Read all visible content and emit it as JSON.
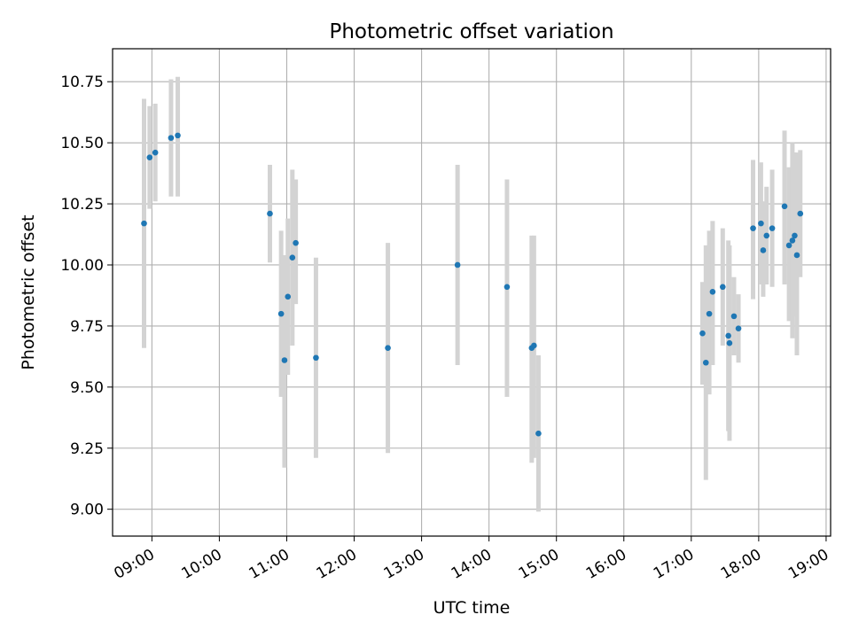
{
  "chart_data": {
    "type": "scatter",
    "title": "Photometric offset variation",
    "xlabel": "UTC time",
    "ylabel": "Photometric offset",
    "x_axis_type": "time",
    "xlim": [
      "08:25",
      "19:04"
    ],
    "ylim": [
      8.89,
      10.885
    ],
    "x_ticks": [
      "09:00",
      "10:00",
      "11:00",
      "12:00",
      "13:00",
      "14:00",
      "15:00",
      "16:00",
      "17:00",
      "18:00",
      "19:00"
    ],
    "y_ticks": [
      "9.00",
      "9.25",
      "9.50",
      "9.75",
      "10.00",
      "10.25",
      "10.50",
      "10.75"
    ],
    "grid": true,
    "legend": false,
    "point_color": "#1f77b4",
    "errorbar_color": "#d3d3d3",
    "points": [
      {
        "t": "08:53",
        "y": 10.17,
        "ylo": 9.66,
        "yhi": 10.68
      },
      {
        "t": "08:58",
        "y": 10.44,
        "ylo": 10.23,
        "yhi": 10.65
      },
      {
        "t": "09:03",
        "y": 10.46,
        "ylo": 10.26,
        "yhi": 10.66
      },
      {
        "t": "09:17",
        "y": 10.52,
        "ylo": 10.28,
        "yhi": 10.76
      },
      {
        "t": "09:23",
        "y": 10.53,
        "ylo": 10.28,
        "yhi": 10.77
      },
      {
        "t": "10:45",
        "y": 10.21,
        "ylo": 10.01,
        "yhi": 10.41
      },
      {
        "t": "10:55",
        "y": 9.8,
        "ylo": 9.46,
        "yhi": 10.14
      },
      {
        "t": "10:58",
        "y": 9.61,
        "ylo": 9.17,
        "yhi": 10.04
      },
      {
        "t": "11:01",
        "y": 9.87,
        "ylo": 9.55,
        "yhi": 10.19
      },
      {
        "t": "11:05",
        "y": 10.03,
        "ylo": 9.67,
        "yhi": 10.39
      },
      {
        "t": "11:08",
        "y": 10.09,
        "ylo": 9.84,
        "yhi": 10.35
      },
      {
        "t": "11:26",
        "y": 9.62,
        "ylo": 9.21,
        "yhi": 10.03
      },
      {
        "t": "12:30",
        "y": 9.66,
        "ylo": 9.23,
        "yhi": 10.09
      },
      {
        "t": "13:32",
        "y": 10.0,
        "ylo": 9.59,
        "yhi": 10.41
      },
      {
        "t": "14:16",
        "y": 9.91,
        "ylo": 9.46,
        "yhi": 10.35
      },
      {
        "t": "14:38",
        "y": 9.66,
        "ylo": 9.19,
        "yhi": 10.12
      },
      {
        "t": "14:40",
        "y": 9.67,
        "ylo": 9.21,
        "yhi": 10.12
      },
      {
        "t": "14:44",
        "y": 9.31,
        "ylo": 8.99,
        "yhi": 9.63
      },
      {
        "t": "17:10",
        "y": 9.72,
        "ylo": 9.51,
        "yhi": 9.93
      },
      {
        "t": "17:13",
        "y": 9.6,
        "ylo": 9.12,
        "yhi": 10.08
      },
      {
        "t": "17:16",
        "y": 9.8,
        "ylo": 9.47,
        "yhi": 10.14
      },
      {
        "t": "17:19",
        "y": 9.89,
        "ylo": 9.59,
        "yhi": 10.18
      },
      {
        "t": "17:28",
        "y": 9.91,
        "ylo": 9.67,
        "yhi": 10.15
      },
      {
        "t": "17:33",
        "y": 9.71,
        "ylo": 9.32,
        "yhi": 10.1
      },
      {
        "t": "17:34",
        "y": 9.68,
        "ylo": 9.28,
        "yhi": 10.08
      },
      {
        "t": "17:38",
        "y": 9.79,
        "ylo": 9.63,
        "yhi": 9.95
      },
      {
        "t": "17:42",
        "y": 9.74,
        "ylo": 9.6,
        "yhi": 9.88
      },
      {
        "t": "17:55",
        "y": 10.15,
        "ylo": 9.86,
        "yhi": 10.43
      },
      {
        "t": "18:02",
        "y": 10.17,
        "ylo": 9.92,
        "yhi": 10.42
      },
      {
        "t": "18:04",
        "y": 10.06,
        "ylo": 9.87,
        "yhi": 10.26
      },
      {
        "t": "18:07",
        "y": 10.12,
        "ylo": 9.92,
        "yhi": 10.32
      },
      {
        "t": "18:12",
        "y": 10.15,
        "ylo": 9.91,
        "yhi": 10.39
      },
      {
        "t": "18:23",
        "y": 10.24,
        "ylo": 9.92,
        "yhi": 10.55
      },
      {
        "t": "18:27",
        "y": 10.08,
        "ylo": 9.77,
        "yhi": 10.4
      },
      {
        "t": "18:30",
        "y": 10.1,
        "ylo": 9.7,
        "yhi": 10.5
      },
      {
        "t": "18:32",
        "y": 10.12,
        "ylo": 9.79,
        "yhi": 10.46
      },
      {
        "t": "18:34",
        "y": 10.04,
        "ylo": 9.63,
        "yhi": 10.46
      },
      {
        "t": "18:37",
        "y": 10.21,
        "ylo": 9.95,
        "yhi": 10.47
      }
    ]
  }
}
